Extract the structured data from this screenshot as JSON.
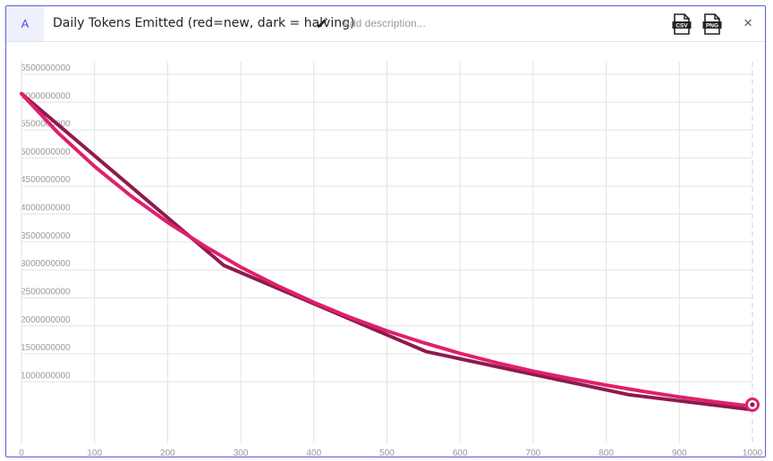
{
  "header": {
    "badge": "A",
    "title": "Daily Tokens Emitted (red=new, dark = halving)",
    "description_placeholder": "Add description...",
    "csv_label": "CSV",
    "png_label": "PNG",
    "close_label": "×"
  },
  "colors": {
    "new": "#e0206a",
    "halving": "#8e1a4e",
    "grid": "#e2e2e2",
    "frame": "#5a5fd0"
  },
  "chart_data": {
    "type": "line",
    "title": "Daily Tokens Emitted (red=new, dark = halving)",
    "xlabel": "",
    "ylabel": "",
    "xlim": [
      0,
      1000
    ],
    "ylim": [
      0,
      6500000000
    ],
    "x_ticks": [
      0,
      100,
      200,
      300,
      400,
      500,
      600,
      700,
      800,
      900,
      1000
    ],
    "y_ticks": [
      1000000000,
      1500000000,
      2000000000,
      2500000000,
      3000000000,
      3500000000,
      4000000000,
      4500000000,
      5000000000,
      5500000000,
      6000000000,
      6500000000
    ],
    "grid": true,
    "series": [
      {
        "key": "halving",
        "color": "#8e1a4e",
        "points": [
          [
            0,
            6150000000
          ],
          [
            277,
            3080000000
          ],
          [
            554,
            1540000000
          ],
          [
            831,
            770000000
          ],
          [
            1000,
            500000000
          ]
        ]
      },
      {
        "key": "new",
        "color": "#e0206a",
        "points": [
          [
            0,
            6150000000
          ],
          [
            50,
            5450000000
          ],
          [
            100,
            4850000000
          ],
          [
            150,
            4320000000
          ],
          [
            200,
            3850000000
          ],
          [
            250,
            3430000000
          ],
          [
            300,
            3050000000
          ],
          [
            350,
            2720000000
          ],
          [
            400,
            2420000000
          ],
          [
            450,
            2150000000
          ],
          [
            500,
            1910000000
          ],
          [
            550,
            1700000000
          ],
          [
            600,
            1510000000
          ],
          [
            650,
            1340000000
          ],
          [
            700,
            1190000000
          ],
          [
            750,
            1060000000
          ],
          [
            800,
            940000000
          ],
          [
            850,
            830000000
          ],
          [
            900,
            730000000
          ],
          [
            950,
            640000000
          ],
          [
            1000,
            560000000
          ]
        ]
      }
    ]
  }
}
